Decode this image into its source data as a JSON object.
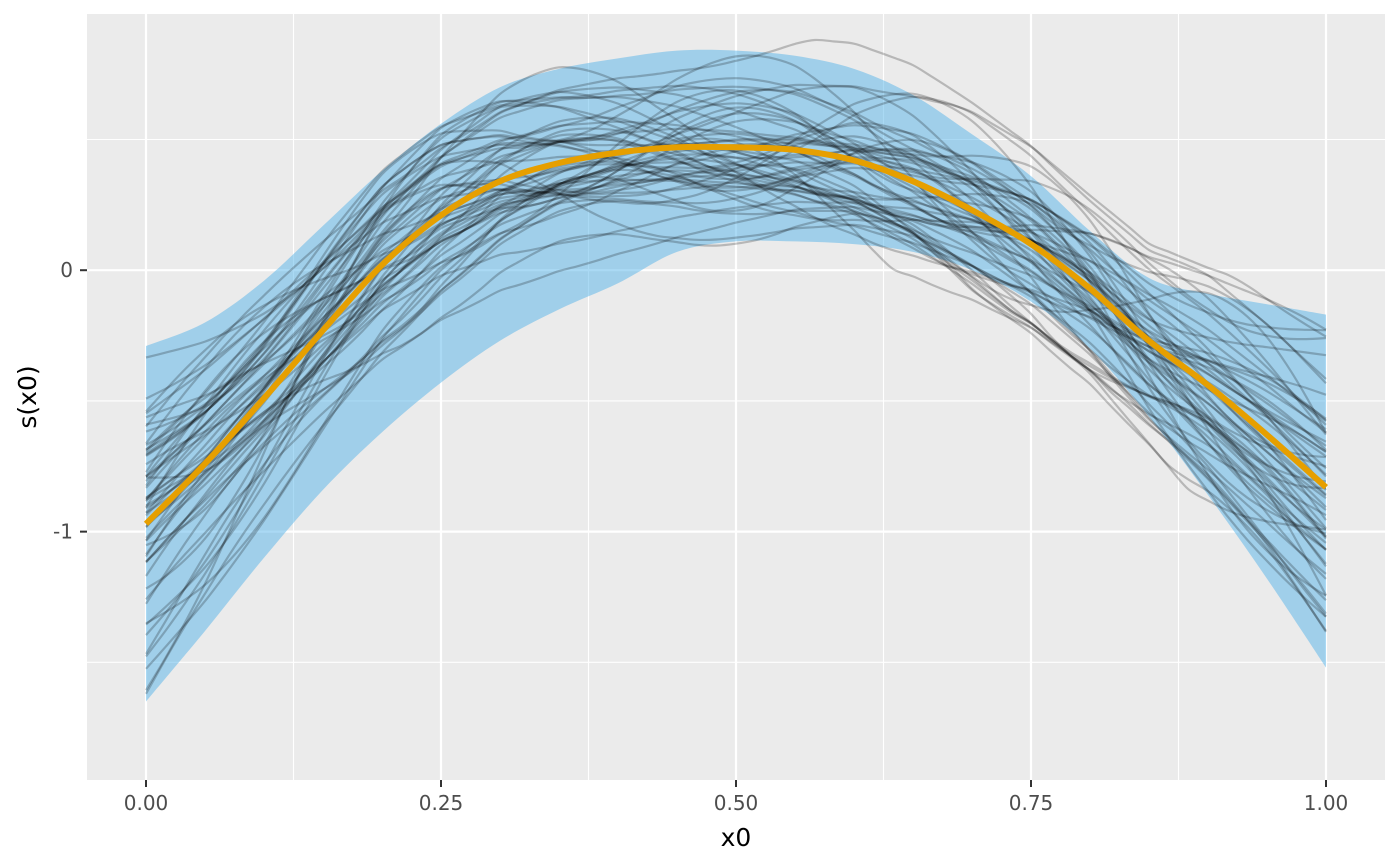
{
  "chart_data": {
    "type": "line",
    "title": "",
    "xlabel": "x0",
    "ylabel": "s(x0)",
    "xlim": [
      -0.05,
      1.05
    ],
    "ylim": [
      -1.95,
      0.98
    ],
    "x_ticks": [
      {
        "value": 0.0,
        "label": "0.00"
      },
      {
        "value": 0.25,
        "label": "0.25"
      },
      {
        "value": 0.5,
        "label": "0.50"
      },
      {
        "value": 0.75,
        "label": "0.75"
      },
      {
        "value": 1.0,
        "label": "1.00"
      }
    ],
    "y_ticks": [
      {
        "value": 0,
        "label": "0"
      },
      {
        "value": -1,
        "label": "-1"
      }
    ],
    "grid": true,
    "legend": "none",
    "colors": {
      "panel": "#ebebeb",
      "grid": "#ffffff",
      "ribbon": "#56b4e9",
      "estimate": "#e69f00",
      "draws": "#000000"
    },
    "ribbon": {
      "x": [
        0.0,
        0.05,
        0.1,
        0.15,
        0.2,
        0.25,
        0.3,
        0.35,
        0.4,
        0.45,
        0.5,
        0.55,
        0.6,
        0.65,
        0.7,
        0.75,
        0.8,
        0.85,
        0.9,
        0.95,
        1.0
      ],
      "lower": [
        -1.65,
        -1.38,
        -1.1,
        -0.84,
        -0.62,
        -0.43,
        -0.27,
        -0.15,
        -0.05,
        0.07,
        0.11,
        0.11,
        0.1,
        0.07,
        0.0,
        -0.12,
        -0.3,
        -0.56,
        -0.86,
        -1.18,
        -1.52
      ],
      "upper": [
        -0.29,
        -0.2,
        -0.04,
        0.17,
        0.38,
        0.56,
        0.7,
        0.77,
        0.81,
        0.84,
        0.84,
        0.82,
        0.77,
        0.67,
        0.52,
        0.36,
        0.15,
        -0.03,
        -0.09,
        -0.13,
        -0.17
      ]
    },
    "estimate": {
      "name": "",
      "x": [
        0.0,
        0.05,
        0.1,
        0.15,
        0.2,
        0.25,
        0.3,
        0.35,
        0.4,
        0.45,
        0.5,
        0.55,
        0.6,
        0.65,
        0.7,
        0.75,
        0.8,
        0.85,
        0.9,
        0.95,
        1.0
      ],
      "y": [
        -0.97,
        -0.74,
        -0.49,
        -0.23,
        0.02,
        0.21,
        0.34,
        0.41,
        0.45,
        0.47,
        0.47,
        0.46,
        0.42,
        0.34,
        0.23,
        0.1,
        -0.07,
        -0.27,
        -0.44,
        -0.63,
        -0.83
      ]
    },
    "draws": {
      "count": 60,
      "alpha": 0.22
    }
  }
}
